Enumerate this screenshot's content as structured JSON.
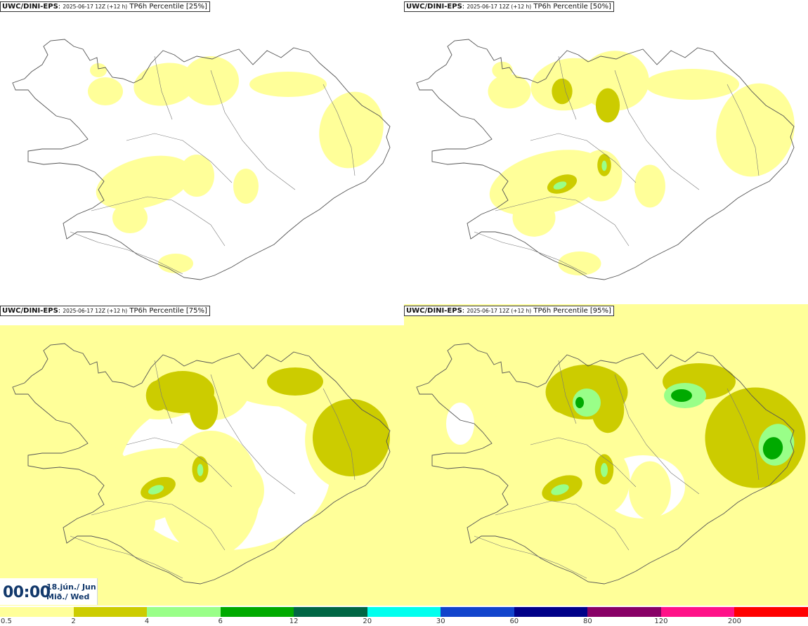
{
  "panels": [
    {
      "model": "UWC/DINI-EPS",
      "run": "2025-06-17 12Z (+12 h)",
      "product": "TP6h Percentile [25%]",
      "level": 0
    },
    {
      "model": "UWC/DINI-EPS",
      "run": "2025-06-17 12Z (+12 h)",
      "product": "TP6h Percentile [50%]",
      "level": 1
    },
    {
      "model": "UWC/DINI-EPS",
      "run": "2025-06-17 12Z (+12 h)",
      "product": "TP6h Percentile [75%]",
      "level": 2
    },
    {
      "model": "UWC/DINI-EPS",
      "run": "2025-06-17 12Z (+12 h)",
      "product": "TP6h Percentile [95%]",
      "level": 3
    }
  ],
  "valid_time": {
    "time": "00:00",
    "date_line1": "18.jún./ Jun",
    "date_line2": "Mið./ Wed"
  },
  "legend": {
    "colors": [
      "#ffff99",
      "#cccc00",
      "#99ff88",
      "#00aa00",
      "#006644",
      "#00ffee",
      "#1144cc",
      "#000088",
      "#880066",
      "#ff1188",
      "#ff0000"
    ],
    "ticks": [
      "0.5",
      "2",
      "4",
      "6",
      "12",
      "20",
      "30",
      "60",
      "80",
      "120",
      "200"
    ]
  }
}
